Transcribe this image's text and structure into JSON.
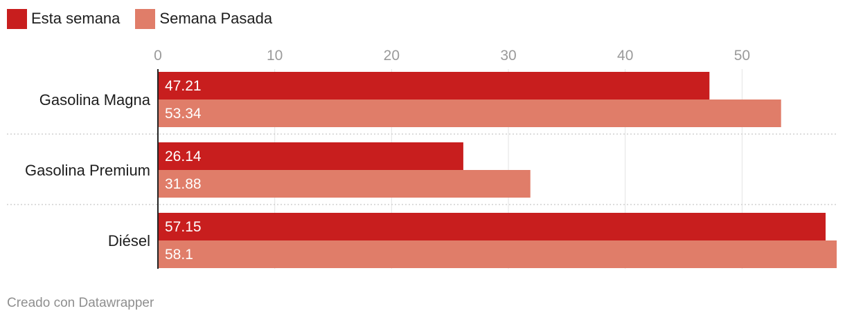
{
  "legend": {
    "items": [
      {
        "label": "Esta semana",
        "color": "#c81e1e"
      },
      {
        "label": "Semana Pasada",
        "color": "#e07d69"
      }
    ]
  },
  "footer": {
    "credit": "Creado con Datawrapper"
  },
  "chart_data": {
    "type": "bar",
    "orientation": "horizontal",
    "categories": [
      "Gasolina Magna",
      "Gasolina Premium",
      "Diésel"
    ],
    "series": [
      {
        "name": "Esta semana",
        "values": [
          47.21,
          26.14,
          57.15
        ],
        "color": "#c81e1e"
      },
      {
        "name": "Semana Pasada",
        "values": [
          53.34,
          31.88,
          58.1
        ],
        "color": "#e07d69"
      }
    ],
    "value_labels": [
      [
        "47.21",
        "26.14",
        "57.15"
      ],
      [
        "53.34",
        "31.88",
        "58.1"
      ]
    ],
    "xticks": [
      "0",
      "10",
      "20",
      "30",
      "40",
      "50"
    ],
    "xlim": [
      0,
      58.1
    ],
    "grid": true,
    "legend_position": "top-left",
    "title": "",
    "xlabel": "",
    "ylabel": ""
  }
}
